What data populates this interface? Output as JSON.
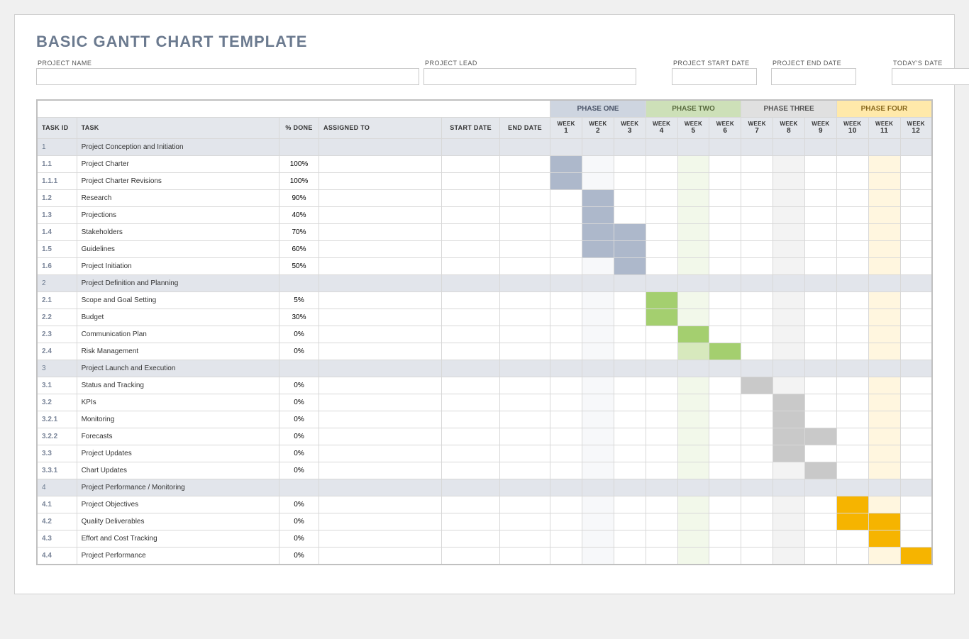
{
  "title": "BASIC GANTT CHART TEMPLATE",
  "meta": {
    "name_label": "PROJECT NAME",
    "lead_label": "PROJECT LEAD",
    "start_label": "PROJECT START DATE",
    "end_label": "PROJECT END DATE",
    "today_label": "TODAY'S DATE"
  },
  "phases": [
    {
      "label": "PHASE ONE",
      "weeks": [
        1,
        2,
        3
      ],
      "header_bg": "#ced5e0",
      "fill": "#adb8cb",
      "alt_tint": "#f7f8fa"
    },
    {
      "label": "PHASE TWO",
      "weeks": [
        4,
        5,
        6
      ],
      "header_bg": "#cde0b8",
      "fill": "#a4cf6f",
      "alt_tint": "#f2f8ea"
    },
    {
      "label": "PHASE THREE",
      "weeks": [
        7,
        8,
        9
      ],
      "header_bg": "#e0e0e0",
      "fill": "#c9c9c9",
      "alt_tint": "#f3f3f3"
    },
    {
      "label": "PHASE FOUR",
      "weeks": [
        10,
        11,
        12
      ],
      "header_bg": "#ffe9aa",
      "fill": "#f6b400",
      "alt_tint": "#fff6df"
    }
  ],
  "columns": {
    "task_id": "TASK ID",
    "task": "TASK",
    "pct_done": "% DONE",
    "assigned_to": "ASSIGNED TO",
    "start_date": "START DATE",
    "end_date": "END DATE",
    "week_prefix": "WEEK"
  },
  "rows": [
    {
      "id": "1",
      "task": "Project Conception and Initiation",
      "pct": "",
      "section": true,
      "bars": []
    },
    {
      "id": "1.1",
      "task": "Project Charter",
      "pct": "100%",
      "bars": [
        {
          "w": 1,
          "c": "f-ph1"
        }
      ]
    },
    {
      "id": "1.1.1",
      "task": "Project Charter Revisions",
      "pct": "100%",
      "bars": [
        {
          "w": 1,
          "c": "f-ph1"
        }
      ]
    },
    {
      "id": "1.2",
      "task": "Research",
      "pct": "90%",
      "bars": [
        {
          "w": 2,
          "c": "f-ph1"
        }
      ]
    },
    {
      "id": "1.3",
      "task": "Projections",
      "pct": "40%",
      "bars": [
        {
          "w": 2,
          "c": "f-ph1"
        }
      ]
    },
    {
      "id": "1.4",
      "task": "Stakeholders",
      "pct": "70%",
      "bars": [
        {
          "w": 2,
          "c": "f-ph1"
        },
        {
          "w": 3,
          "c": "f-ph1"
        }
      ]
    },
    {
      "id": "1.5",
      "task": "Guidelines",
      "pct": "60%",
      "bars": [
        {
          "w": 2,
          "c": "f-ph1"
        },
        {
          "w": 3,
          "c": "f-ph1"
        }
      ]
    },
    {
      "id": "1.6",
      "task": "Project Initiation",
      "pct": "50%",
      "bars": [
        {
          "w": 3,
          "c": "f-ph1"
        }
      ]
    },
    {
      "id": "2",
      "task": "Project Definition and Planning",
      "pct": "",
      "section": true,
      "bars": []
    },
    {
      "id": "2.1",
      "task": "Scope and Goal Setting",
      "pct": "5%",
      "bars": [
        {
          "w": 4,
          "c": "f-ph2"
        }
      ]
    },
    {
      "id": "2.2",
      "task": "Budget",
      "pct": "30%",
      "bars": [
        {
          "w": 4,
          "c": "f-ph2"
        }
      ]
    },
    {
      "id": "2.3",
      "task": "Communication Plan",
      "pct": "0%",
      "bars": [
        {
          "w": 5,
          "c": "f-ph2"
        }
      ]
    },
    {
      "id": "2.4",
      "task": "Risk Management",
      "pct": "0%",
      "bars": [
        {
          "w": 5,
          "c": "f-ph2l"
        },
        {
          "w": 6,
          "c": "f-ph2"
        }
      ]
    },
    {
      "id": "3",
      "task": "Project Launch and Execution",
      "pct": "",
      "section": true,
      "bars": []
    },
    {
      "id": "3.1",
      "task": "Status and Tracking",
      "pct": "0%",
      "bars": [
        {
          "w": 7,
          "c": "f-ph3"
        }
      ]
    },
    {
      "id": "3.2",
      "task": "KPIs",
      "pct": "0%",
      "bars": [
        {
          "w": 8,
          "c": "f-ph3"
        }
      ]
    },
    {
      "id": "3.2.1",
      "task": "Monitoring",
      "pct": "0%",
      "bars": [
        {
          "w": 8,
          "c": "f-ph3"
        }
      ]
    },
    {
      "id": "3.2.2",
      "task": "Forecasts",
      "pct": "0%",
      "bars": [
        {
          "w": 8,
          "c": "f-ph3"
        },
        {
          "w": 9,
          "c": "f-ph3"
        }
      ]
    },
    {
      "id": "3.3",
      "task": "Project Updates",
      "pct": "0%",
      "bars": [
        {
          "w": 8,
          "c": "f-ph3"
        }
      ]
    },
    {
      "id": "3.3.1",
      "task": "Chart Updates",
      "pct": "0%",
      "bars": [
        {
          "w": 9,
          "c": "f-ph3"
        }
      ]
    },
    {
      "id": "4",
      "task": "Project Performance / Monitoring",
      "pct": "",
      "section": true,
      "bars": []
    },
    {
      "id": "4.1",
      "task": "Project Objectives",
      "pct": "0%",
      "bars": [
        {
          "w": 10,
          "c": "f-ph4"
        }
      ]
    },
    {
      "id": "4.2",
      "task": "Quality Deliverables",
      "pct": "0%",
      "bars": [
        {
          "w": 10,
          "c": "f-ph4"
        },
        {
          "w": 11,
          "c": "f-ph4"
        }
      ]
    },
    {
      "id": "4.3",
      "task": "Effort and Cost Tracking",
      "pct": "0%",
      "bars": [
        {
          "w": 11,
          "c": "f-ph4"
        }
      ]
    },
    {
      "id": "4.4",
      "task": "Project Performance",
      "pct": "0%",
      "bars": [
        {
          "w": 12,
          "c": "f-ph4"
        }
      ]
    }
  ]
}
